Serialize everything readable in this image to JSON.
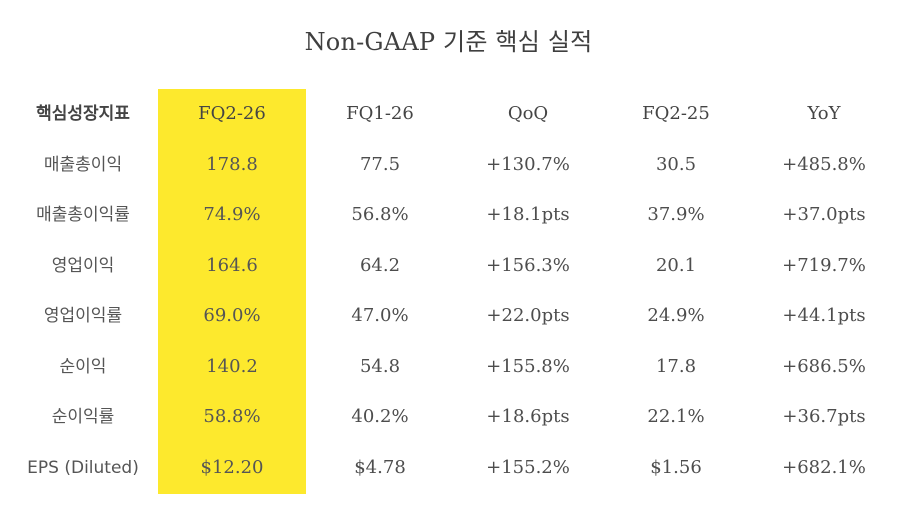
{
  "title": "Non-GAAP 기준 핵심 실적",
  "headers": [
    "핵심성장지표",
    "FQ2-26",
    "FQ1-26",
    "QoQ",
    "FQ2-25",
    "YoY"
  ],
  "highlight_color": "#fde92d",
  "rows": [
    [
      "매출총이익",
      "178.8",
      "77.5",
      "+130.7%",
      "30.5",
      "+485.8%"
    ],
    [
      "매출총이익률",
      "74.9%",
      "56.8%",
      "+18.1pts",
      "37.9%",
      "+37.0pts"
    ],
    [
      "영업이익",
      "164.6",
      "64.2",
      "+156.3%",
      "20.1",
      "+719.7%"
    ],
    [
      "영업이익률",
      "69.0%",
      "47.0%",
      "+22.0pts",
      "24.9%",
      "+44.1pts"
    ],
    [
      "순이익",
      "140.2",
      "54.8",
      "+155.8%",
      "17.8",
      "+686.5%"
    ],
    [
      "순이익률",
      "58.8%",
      "40.2%",
      "+18.6pts",
      "22.1%",
      "+36.7pts"
    ],
    [
      "EPS (Diluted)",
      "$12.20",
      "$4.78",
      "+155.2%",
      "$1.56",
      "+682.1%"
    ]
  ]
}
